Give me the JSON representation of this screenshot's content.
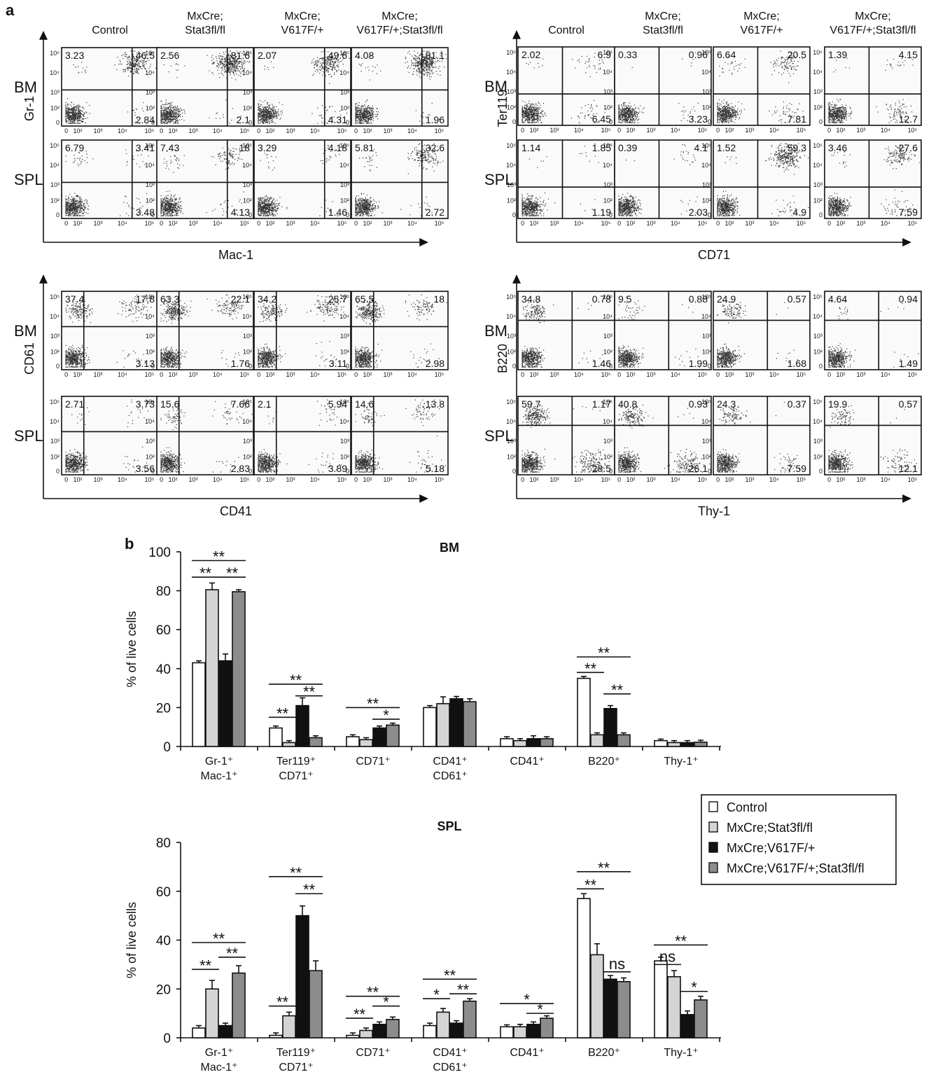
{
  "figure": {
    "panel_a_label": "a",
    "panel_b_label": "b"
  },
  "flow": {
    "groups": [
      "Control",
      "MxCre;\nStat3fl/fl",
      "MxCre;\nV617F/+",
      "MxCre;\nV617F/+;Stat3fl/fl"
    ],
    "tick_labels": [
      "0",
      "10²",
      "10³",
      "10⁴",
      "10⁵"
    ],
    "panels": [
      {
        "x_axis": "Mac-1",
        "y_axis": "Gr-1",
        "rows": [
          {
            "tissue": "BM",
            "plots": [
              {
                "ul": "3.23",
                "ur": "46.5",
                "lr": "2.84"
              },
              {
                "ul": "2.56",
                "ur": "81.6",
                "lr": "2.1"
              },
              {
                "ul": "2.07",
                "ur": "49.6",
                "lr": "4.31"
              },
              {
                "ul": "4.08",
                "ur": "81.1",
                "lr": "1.96"
              }
            ]
          },
          {
            "tissue": "SPL",
            "plots": [
              {
                "ul": "6.79",
                "ur": "3.41",
                "lr": "3.48"
              },
              {
                "ul": "7.43",
                "ur": "18",
                "lr": "4.13"
              },
              {
                "ul": "3.29",
                "ur": "4.18",
                "lr": "1.46"
              },
              {
                "ul": "5.81",
                "ur": "32.6",
                "lr": "2.72"
              }
            ]
          }
        ]
      },
      {
        "x_axis": "CD71",
        "y_axis": "Ter119",
        "rows": [
          {
            "tissue": "BM",
            "plots": [
              {
                "ul": "2.02",
                "ur": "6.9",
                "lr": "6.45"
              },
              {
                "ul": "0.33",
                "ur": "0.96",
                "lr": "3.23"
              },
              {
                "ul": "6.64",
                "ur": "20.5",
                "lr": "7.81"
              },
              {
                "ul": "1.39",
                "ur": "4.15",
                "lr": "12.7"
              }
            ]
          },
          {
            "tissue": "SPL",
            "plots": [
              {
                "ul": "1.14",
                "ur": "1.85",
                "lr": "1.19"
              },
              {
                "ul": "0.39",
                "ur": "4.1",
                "lr": "2.03"
              },
              {
                "ul": "1.52",
                "ur": "59.3",
                "lr": "4.9"
              },
              {
                "ul": "3.46",
                "ur": "27.6",
                "lr": "7.59"
              }
            ]
          }
        ]
      },
      {
        "x_axis": "CD41",
        "y_axis": "CD61",
        "rows": [
          {
            "tissue": "BM",
            "plots": [
              {
                "ul": "37.4",
                "ur": "17.8",
                "lr": "3.13"
              },
              {
                "ul": "63.3",
                "ur": "22.1",
                "lr": "1.76"
              },
              {
                "ul": "34.2",
                "ur": "25.7",
                "lr": "3.11"
              },
              {
                "ul": "65.5",
                "ur": "18",
                "lr": "2.98"
              }
            ]
          },
          {
            "tissue": "SPL",
            "plots": [
              {
                "ul": "2.71",
                "ur": "3.73",
                "lr": "3.56"
              },
              {
                "ul": "15.6",
                "ur": "7.66",
                "lr": "2.83"
              },
              {
                "ul": "2.1",
                "ur": "5.94",
                "lr": "3.89"
              },
              {
                "ul": "14.6",
                "ur": "13.8",
                "lr": "5.18"
              }
            ]
          }
        ]
      },
      {
        "x_axis": "Thy-1",
        "y_axis": "B220",
        "rows": [
          {
            "tissue": "BM",
            "plots": [
              {
                "ul": "34.8",
                "ur": "0.78",
                "lr": "1.46"
              },
              {
                "ul": "9.5",
                "ur": "0.88",
                "lr": "1.99"
              },
              {
                "ul": "24.9",
                "ur": "0.57",
                "lr": "1.68"
              },
              {
                "ul": "4.64",
                "ur": "0.94",
                "lr": "1.49"
              }
            ]
          },
          {
            "tissue": "SPL",
            "plots": [
              {
                "ul": "59.7",
                "ur": "1.17",
                "lr": "28.5"
              },
              {
                "ul": "40.8",
                "ur": "0.93",
                "lr": "26.1"
              },
              {
                "ul": "24.3",
                "ur": "0.37",
                "lr": "7.59"
              },
              {
                "ul": "19.9",
                "ur": "0.57",
                "lr": "12.1"
              }
            ]
          }
        ]
      }
    ]
  },
  "chart_data": [
    {
      "type": "bar",
      "title": "BM",
      "ylabel": "% of live cells",
      "ylim": [
        0,
        100
      ],
      "yticks": [
        0,
        20,
        40,
        60,
        80,
        100
      ],
      "categories": [
        "Gr-1⁺\nMac-1⁺",
        "Ter119⁺\nCD71⁺",
        "CD71⁺",
        "CD41⁺\nCD61⁺",
        "CD41⁺",
        "B220⁺",
        "Thy-1⁺"
      ],
      "series": [
        {
          "name": "Control",
          "color": "#ffffff",
          "values": [
            43,
            9.5,
            5,
            20,
            4,
            35,
            3
          ],
          "errors": [
            1,
            1,
            1,
            1,
            1,
            1,
            0.8
          ]
        },
        {
          "name": "MxCre;Stat3fl/fl",
          "color": "#d4d4d4",
          "values": [
            80.5,
            2,
            3.5,
            22,
            3,
            6,
            2
          ],
          "errors": [
            3.5,
            1,
            1,
            3.5,
            1,
            1,
            1
          ]
        },
        {
          "name": "MxCre;V617F/+",
          "color": "#111111",
          "values": [
            44,
            21,
            9.5,
            24.5,
            4,
            19.5,
            2
          ],
          "errors": [
            3.5,
            4,
            1,
            1.2,
            1.5,
            1.5,
            1
          ]
        },
        {
          "name": "MxCre;V617F/+;Stat3fl/fl",
          "color": "#8c8c8c",
          "values": [
            79.5,
            4.5,
            11,
            23,
            4,
            6,
            2.2
          ],
          "errors": [
            1,
            1,
            1,
            1.5,
            1,
            1,
            1
          ]
        }
      ],
      "significance": [
        {
          "category": 0,
          "from": 0,
          "to": 3,
          "y": 95.5,
          "label": "**"
        },
        {
          "category": 0,
          "from": 0,
          "to": 1,
          "y": 87,
          "label": "**"
        },
        {
          "category": 0,
          "from": 2,
          "to": 3,
          "y": 87,
          "label": "**"
        },
        {
          "category": 1,
          "from": 0,
          "to": 3,
          "y": 32,
          "label": "**"
        },
        {
          "category": 1,
          "from": 2,
          "to": 3,
          "y": 26,
          "label": "**"
        },
        {
          "category": 1,
          "from": 0,
          "to": 1,
          "y": 15,
          "label": "**"
        },
        {
          "category": 2,
          "from": 0,
          "to": 3,
          "y": 20,
          "label": "**"
        },
        {
          "category": 2,
          "from": 2,
          "to": 3,
          "y": 14,
          "label": "*"
        },
        {
          "category": 5,
          "from": 0,
          "to": 3,
          "y": 46,
          "label": "**"
        },
        {
          "category": 5,
          "from": 0,
          "to": 1,
          "y": 38,
          "label": "**"
        },
        {
          "category": 5,
          "from": 2,
          "to": 3,
          "y": 27,
          "label": "**"
        }
      ]
    },
    {
      "type": "bar",
      "title": "SPL",
      "ylabel": "% of live cells",
      "ylim": [
        0,
        80
      ],
      "yticks": [
        0,
        20,
        40,
        60,
        80
      ],
      "categories": [
        "Gr-1⁺\nMac-1⁺",
        "Ter119⁺\nCD71⁺",
        "CD71⁺",
        "CD41⁺\nCD61⁺",
        "CD41⁺",
        "B220⁺",
        "Thy-1⁺"
      ],
      "series": [
        {
          "name": "Control",
          "color": "#ffffff",
          "values": [
            4,
            1,
            1,
            5,
            4.5,
            57,
            31.5
          ],
          "errors": [
            1,
            1,
            1,
            1,
            0.8,
            2,
            1.5
          ]
        },
        {
          "name": "MxCre;Stat3fl/fl",
          "color": "#d4d4d4",
          "values": [
            20,
            9,
            3,
            10.5,
            4.5,
            34,
            25
          ],
          "errors": [
            3.5,
            1.5,
            1,
            1.5,
            1,
            4.5,
            2.5
          ]
        },
        {
          "name": "MxCre;V617F/+",
          "color": "#111111",
          "values": [
            5,
            50,
            5.5,
            6,
            5.5,
            24,
            9.5
          ],
          "errors": [
            1,
            4,
            1,
            1,
            1,
            1.5,
            1.5
          ]
        },
        {
          "name": "MxCre;V617F/+;Stat3fl/fl",
          "color": "#8c8c8c",
          "values": [
            26.5,
            27.5,
            7.5,
            15,
            8,
            23,
            15.5
          ],
          "errors": [
            3,
            4,
            1,
            1,
            1,
            1.5,
            1.5
          ]
        }
      ],
      "significance": [
        {
          "category": 0,
          "from": 0,
          "to": 3,
          "y": 39,
          "label": "**"
        },
        {
          "category": 0,
          "from": 0,
          "to": 1,
          "y": 28,
          "label": "**"
        },
        {
          "category": 0,
          "from": 2,
          "to": 3,
          "y": 33,
          "label": "**"
        },
        {
          "category": 1,
          "from": 0,
          "to": 3,
          "y": 66,
          "label": "**"
        },
        {
          "category": 1,
          "from": 2,
          "to": 3,
          "y": 59,
          "label": "**"
        },
        {
          "category": 1,
          "from": 0,
          "to": 1,
          "y": 13,
          "label": "**"
        },
        {
          "category": 2,
          "from": 0,
          "to": 3,
          "y": 17,
          "label": "**"
        },
        {
          "category": 2,
          "from": 0,
          "to": 1,
          "y": 8,
          "label": "**"
        },
        {
          "category": 2,
          "from": 2,
          "to": 3,
          "y": 13,
          "label": "*"
        },
        {
          "category": 3,
          "from": 0,
          "to": 3,
          "y": 24,
          "label": "**"
        },
        {
          "category": 3,
          "from": 0,
          "to": 1,
          "y": 16,
          "label": "*"
        },
        {
          "category": 3,
          "from": 2,
          "to": 3,
          "y": 18,
          "label": "**"
        },
        {
          "category": 4,
          "from": 0,
          "to": 3,
          "y": 14,
          "label": "*"
        },
        {
          "category": 4,
          "from": 2,
          "to": 3,
          "y": 10,
          "label": "*"
        },
        {
          "category": 5,
          "from": 0,
          "to": 3,
          "y": 68,
          "label": "**"
        },
        {
          "category": 5,
          "from": 0,
          "to": 1,
          "y": 61,
          "label": "**"
        },
        {
          "category": 5,
          "from": 2,
          "to": 3,
          "y": 27,
          "label": "ns"
        },
        {
          "category": 6,
          "from": 0,
          "to": 3,
          "y": 38,
          "label": "**"
        },
        {
          "category": 6,
          "from": 0,
          "to": 1,
          "y": 30,
          "label": "ns"
        },
        {
          "category": 6,
          "from": 2,
          "to": 3,
          "y": 19,
          "label": "*"
        }
      ]
    }
  ]
}
